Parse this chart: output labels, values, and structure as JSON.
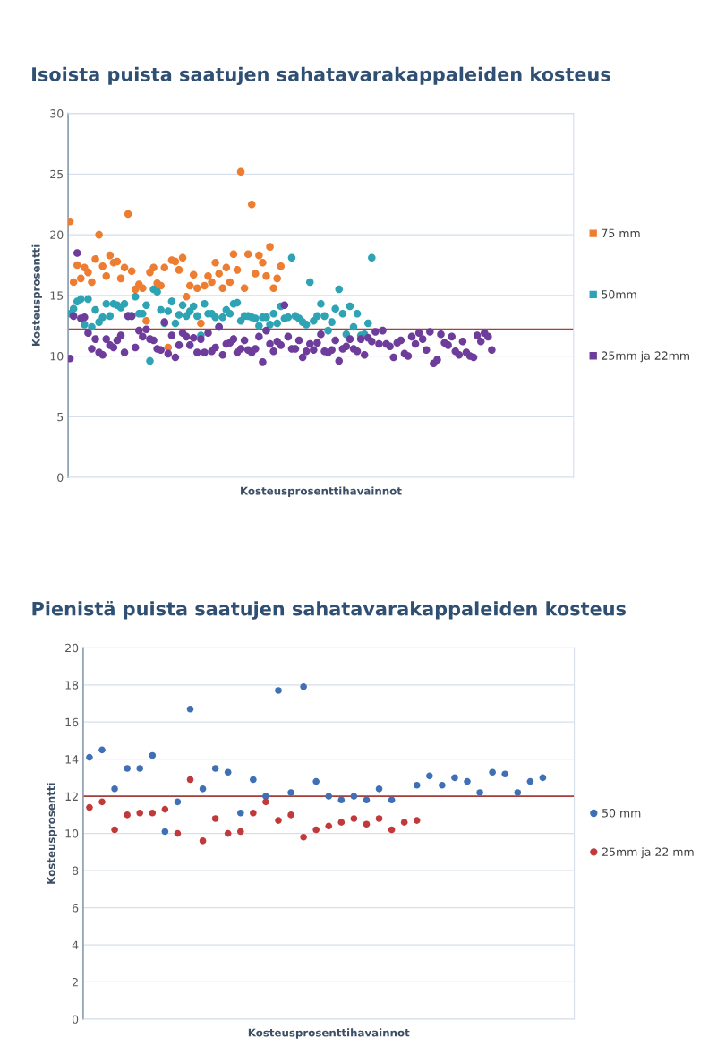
{
  "chart_data": [
    {
      "type": "scatter",
      "title": "Isoista puista saatujen sahatavarakappaleiden kosteus",
      "xlabel": "Kosteusprosenttihavainnot",
      "ylabel": "Kosteusprosentti",
      "ylim": [
        0,
        30
      ],
      "yticks": [
        0,
        5,
        10,
        15,
        20,
        25,
        30
      ],
      "grid": true,
      "legend": "right",
      "marker": "circle",
      "tick_labels": "y",
      "categories": [
        null,
        null,
        null,
        null,
        null,
        null,
        null,
        null,
        null,
        null,
        null,
        null,
        null,
        null,
        null,
        null,
        null,
        null,
        null,
        null,
        null,
        null,
        null,
        null,
        null,
        null,
        null,
        null,
        null,
        null,
        null,
        null,
        null,
        null,
        null,
        null,
        null,
        null,
        null,
        null,
        null,
        null,
        null,
        null,
        null,
        null,
        null,
        null,
        null,
        null,
        null,
        null,
        null,
        null,
        null,
        null,
        null,
        null,
        null,
        null,
        null,
        null,
        null,
        null,
        null,
        null,
        null,
        null,
        null,
        null,
        null,
        null,
        null,
        null,
        null,
        null,
        null,
        null,
        null,
        null,
        null,
        null,
        null,
        null,
        null,
        null,
        null,
        null,
        null,
        null,
        null,
        null,
        null,
        null,
        null,
        null,
        null,
        null,
        null,
        null,
        null,
        null,
        null,
        null,
        null,
        null,
        null,
        null,
        null,
        null,
        null,
        null,
        null,
        null,
        null,
        null,
        null,
        null,
        null,
        null,
        null,
        null,
        null,
        null,
        null,
        null,
        null,
        null,
        null,
        null,
        null,
        null,
        null,
        null,
        null,
        null,
        null,
        null,
        null
      ],
      "ref_lines": [
        {
          "axis": "y",
          "value": 12.2,
          "color": "#a6403c"
        }
      ],
      "series": [
        {
          "name": "75 mm",
          "color": "#ed7d31",
          "values": [
            21.1,
            16.1,
            17.5,
            16.4,
            17.3,
            16.9,
            16.1,
            18.0,
            20.0,
            17.4,
            16.6,
            18.3,
            17.7,
            17.8,
            16.4,
            17.3,
            21.7,
            17.0,
            15.5,
            15.9,
            15.6,
            12.9,
            16.9,
            17.3,
            16.0,
            15.8,
            17.3,
            10.7,
            17.9,
            17.8,
            17.1,
            18.1,
            14.9,
            15.8,
            16.7,
            15.6,
            12.7,
            15.8,
            16.6,
            16.1,
            17.7,
            16.8,
            15.6,
            17.3,
            16.1,
            18.4,
            17.1,
            25.2,
            15.6,
            18.4,
            22.5,
            16.8,
            18.3,
            17.7,
            16.6,
            19.0,
            15.6,
            16.4,
            17.4,
            null,
            null,
            null,
            null,
            null,
            null,
            null,
            null,
            null,
            null,
            null,
            null,
            null,
            null,
            null,
            null,
            null,
            null,
            null,
            null,
            null,
            null,
            null,
            null,
            null,
            null,
            null,
            null,
            null,
            null,
            null,
            null,
            null,
            null,
            null,
            null,
            null,
            null,
            null,
            null,
            null,
            null,
            null,
            null,
            null,
            null,
            null,
            null,
            null,
            null,
            null,
            null,
            null,
            null,
            null,
            null,
            null,
            null,
            null,
            null,
            null,
            null,
            null,
            null,
            null,
            null,
            null,
            null,
            null,
            null,
            null,
            null,
            null,
            null,
            null,
            null,
            null,
            null,
            null,
            null
          ]
        },
        {
          "name": "50mm",
          "color": "#2ea3b4",
          "values": [
            13.5,
            13.9,
            14.5,
            14.7,
            12.6,
            14.7,
            12.4,
            13.8,
            12.8,
            13.2,
            14.3,
            13.3,
            14.3,
            14.2,
            14.0,
            14.3,
            13.3,
            13.3,
            14.9,
            13.5,
            13.5,
            14.2,
            9.6,
            15.5,
            15.3,
            13.8,
            12.7,
            13.7,
            14.5,
            12.7,
            13.4,
            14.2,
            13.3,
            13.7,
            14.1,
            13.3,
            11.7,
            14.3,
            13.5,
            13.5,
            13.2,
            12.4,
            13.2,
            13.8,
            13.5,
            14.3,
            14.4,
            12.9,
            13.3,
            13.3,
            13.2,
            13.1,
            12.5,
            13.2,
            13.2,
            12.6,
            13.5,
            12.7,
            14.1,
            13.1,
            13.2,
            18.1,
            13.3,
            13.1,
            12.8,
            12.6,
            16.1,
            12.9,
            13.3,
            14.3,
            13.3,
            12.1,
            12.8,
            13.9,
            15.5,
            13.5,
            11.8,
            14.1,
            12.4,
            13.5,
            11.7,
            11.8,
            12.7,
            18.1,
            null,
            null,
            null,
            null,
            null,
            null,
            null,
            null,
            null,
            null,
            null,
            null,
            null,
            null,
            null,
            null,
            null,
            null,
            null,
            null,
            null,
            null,
            null,
            null,
            null,
            null,
            null,
            null,
            null,
            null,
            null,
            null,
            null,
            null,
            null,
            null,
            null,
            null,
            null,
            null,
            null,
            null,
            null,
            null,
            null,
            null,
            null,
            null,
            null,
            null,
            null,
            null,
            null,
            null,
            null
          ]
        },
        {
          "name": "25mm ja 22mm",
          "color": "#6e3d9c",
          "values": [
            9.8,
            13.3,
            18.5,
            13.1,
            13.2,
            11.9,
            10.6,
            11.4,
            10.3,
            10.1,
            11.4,
            10.9,
            10.7,
            11.3,
            11.7,
            10.3,
            13.3,
            13.3,
            10.7,
            12.1,
            11.6,
            12.2,
            11.4,
            11.3,
            10.6,
            10.5,
            12.8,
            10.2,
            11.7,
            9.9,
            10.9,
            11.9,
            11.6,
            10.9,
            11.5,
            10.3,
            11.4,
            10.3,
            11.9,
            10.4,
            10.7,
            12.4,
            10.1,
            11.0,
            11.1,
            11.4,
            10.3,
            10.6,
            11.3,
            10.5,
            10.3,
            10.6,
            11.6,
            9.5,
            12.1,
            11.0,
            10.4,
            11.2,
            10.9,
            14.2,
            11.6,
            10.6,
            10.6,
            11.3,
            9.9,
            10.4,
            11.0,
            10.5,
            11.1,
            11.8,
            10.4,
            10.3,
            10.5,
            11.3,
            9.6,
            10.6,
            10.8,
            11.4,
            10.6,
            10.4,
            11.4,
            10.1,
            11.5,
            11.2,
            12.0,
            11.0,
            12.1,
            11.0,
            10.8,
            9.9,
            11.1,
            11.3,
            10.2,
            10.0,
            11.6,
            11.0,
            11.9,
            11.4,
            10.5,
            12.0,
            9.4,
            9.7,
            11.8,
            11.1,
            10.9,
            11.6,
            10.4,
            10.1,
            11.2,
            10.3,
            10.0,
            9.9,
            11.7,
            11.2,
            11.9,
            11.6,
            10.5,
            null,
            null,
            null,
            null,
            null,
            null,
            null,
            null,
            null,
            null,
            null,
            null,
            null,
            null,
            null,
            null,
            null,
            null,
            null,
            null,
            null,
            null
          ]
        }
      ]
    },
    {
      "type": "scatter",
      "title": "Pienistä puista saatujen sahatavarakappaleiden kosteus",
      "xlabel": "Kosteusprosenttihavainnot",
      "ylabel": "Kosteusprosentti",
      "ylim": [
        0,
        20
      ],
      "yticks": [
        0,
        2,
        4,
        6,
        8,
        10,
        12,
        14,
        16,
        18,
        20
      ],
      "grid": true,
      "legend": "right",
      "marker": "circle",
      "tick_labels": "y",
      "categories": [
        null,
        null,
        null,
        null,
        null,
        null,
        null,
        null,
        null,
        null,
        null,
        null,
        null,
        null,
        null,
        null,
        null,
        null,
        null,
        null,
        null,
        null,
        null,
        null,
        null,
        null,
        null,
        null,
        null,
        null,
        null,
        null,
        null,
        null,
        null,
        null,
        null,
        null,
        null
      ],
      "ref_lines": [
        {
          "axis": "y",
          "value": 12,
          "color": "#a6403c"
        }
      ],
      "series": [
        {
          "name": "50 mm",
          "color": "#3f6fb5",
          "values": [
            14.1,
            14.5,
            12.4,
            13.5,
            13.5,
            14.2,
            10.1,
            11.7,
            16.7,
            12.4,
            13.5,
            13.3,
            11.1,
            12.9,
            12.0,
            17.7,
            12.2,
            17.9,
            12.8,
            12.0,
            11.8,
            12.0,
            11.8,
            12.4,
            11.8,
            null,
            12.6,
            13.1,
            12.6,
            13.0,
            12.8,
            12.2,
            13.3,
            13.2,
            12.2,
            12.8,
            13.0,
            null,
            null
          ]
        },
        {
          "name": "25mm ja 22 mm",
          "color": "#c0393b",
          "values": [
            11.4,
            11.7,
            10.2,
            11.0,
            11.1,
            11.1,
            11.3,
            10.0,
            12.9,
            9.6,
            10.8,
            10.0,
            10.1,
            11.1,
            11.7,
            10.7,
            11.0,
            9.8,
            10.2,
            10.4,
            10.6,
            10.8,
            10.5,
            10.8,
            10.2,
            10.6,
            10.7,
            null,
            null,
            null,
            null,
            null,
            null,
            null,
            null,
            null,
            null,
            null,
            null
          ]
        }
      ]
    }
  ]
}
